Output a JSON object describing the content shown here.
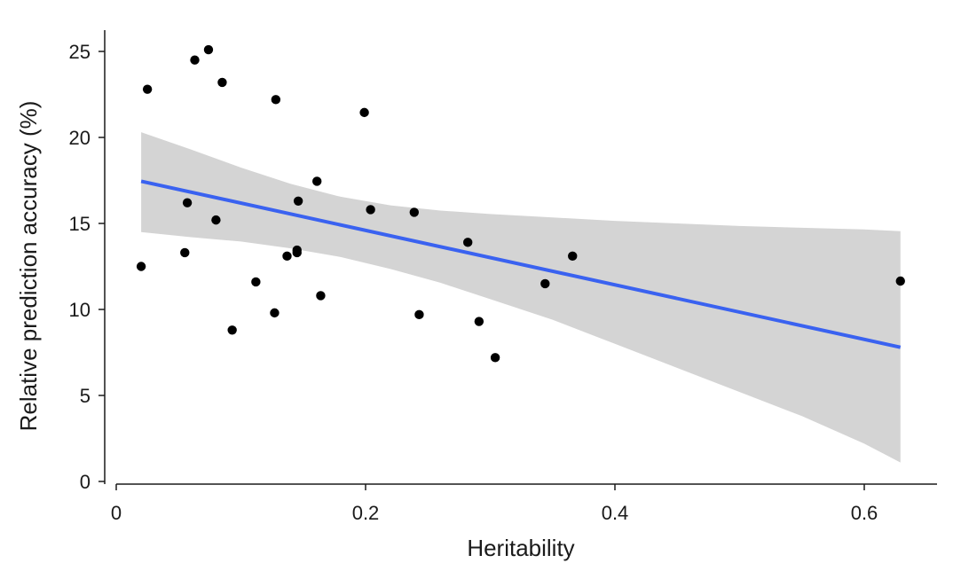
{
  "chart_data": {
    "type": "scatter",
    "title": "",
    "xlabel": "Heritability",
    "ylabel": "Relative prediction accuracy (%)",
    "xlim": [
      -0.01,
      0.66
    ],
    "ylim": [
      0,
      25.5
    ],
    "xticks": [
      0,
      0.2,
      0.4,
      0.6
    ],
    "xtick_labels": [
      "0",
      "0.2",
      "0.4",
      "0.6"
    ],
    "yticks": [
      0,
      5,
      10,
      15,
      20,
      25
    ],
    "ytick_labels": [
      "0",
      "5",
      "10",
      "15",
      "20",
      "25"
    ],
    "grid": false,
    "points": [
      {
        "x": 0.02,
        "y": 12.5
      },
      {
        "x": 0.025,
        "y": 22.8
      },
      {
        "x": 0.055,
        "y": 13.3
      },
      {
        "x": 0.057,
        "y": 16.2
      },
      {
        "x": 0.063,
        "y": 24.5
      },
      {
        "x": 0.074,
        "y": 25.1
      },
      {
        "x": 0.08,
        "y": 15.2
      },
      {
        "x": 0.085,
        "y": 23.2
      },
      {
        "x": 0.093,
        "y": 8.8
      },
      {
        "x": 0.112,
        "y": 11.6
      },
      {
        "x": 0.127,
        "y": 9.8
      },
      {
        "x": 0.128,
        "y": 22.2
      },
      {
        "x": 0.137,
        "y": 13.1
      },
      {
        "x": 0.145,
        "y": 13.3
      },
      {
        "x": 0.145,
        "y": 13.45
      },
      {
        "x": 0.146,
        "y": 16.3
      },
      {
        "x": 0.161,
        "y": 17.45
      },
      {
        "x": 0.164,
        "y": 10.8
      },
      {
        "x": 0.199,
        "y": 21.45
      },
      {
        "x": 0.204,
        "y": 15.8
      },
      {
        "x": 0.239,
        "y": 15.65
      },
      {
        "x": 0.243,
        "y": 9.7
      },
      {
        "x": 0.282,
        "y": 13.9
      },
      {
        "x": 0.291,
        "y": 9.3
      },
      {
        "x": 0.304,
        "y": 7.2
      },
      {
        "x": 0.344,
        "y": 11.5
      },
      {
        "x": 0.366,
        "y": 13.1
      },
      {
        "x": 0.629,
        "y": 11.65
      }
    ],
    "fit_line": {
      "x": [
        0.02,
        0.629
      ],
      "y": [
        17.45,
        7.8
      ]
    },
    "confidence_band": {
      "x": [
        0.02,
        0.06,
        0.1,
        0.14,
        0.18,
        0.22,
        0.26,
        0.3,
        0.35,
        0.4,
        0.45,
        0.5,
        0.55,
        0.6,
        0.629
      ],
      "upper": [
        20.3,
        19.3,
        18.25,
        17.3,
        16.55,
        16.05,
        15.75,
        15.55,
        15.35,
        15.15,
        15.0,
        14.85,
        14.75,
        14.65,
        14.55
      ],
      "lower": [
        14.5,
        14.2,
        13.95,
        13.55,
        13.05,
        12.35,
        11.55,
        10.6,
        9.4,
        8.0,
        6.6,
        5.2,
        3.8,
        2.2,
        1.1
      ]
    },
    "colors": {
      "points": "#000000",
      "fit_line": "#3a62f0",
      "band": "#d4d4d4",
      "axis": "#1a1a1a"
    }
  }
}
